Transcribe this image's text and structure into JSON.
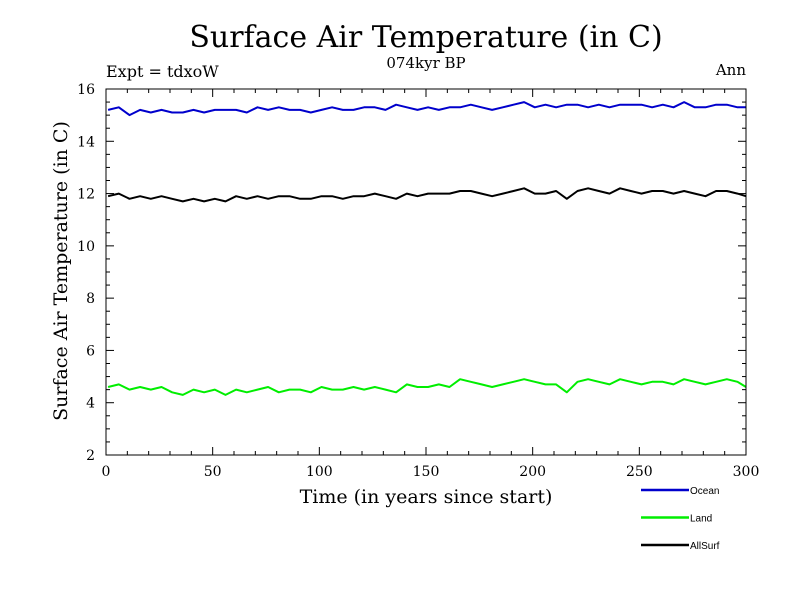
{
  "chart_data": {
    "type": "line",
    "title": "Surface Air Temperature (in C)",
    "subtitle": "074kyr BP",
    "left_annotation": "Expt = tdxoW",
    "right_annotation": "Ann",
    "xlabel": "Time (in years since start)",
    "ylabel": "Surface Air Temperature (in C)",
    "xlim": [
      0,
      300
    ],
    "ylim": [
      2,
      16
    ],
    "xticks": [
      0,
      50,
      100,
      150,
      200,
      250,
      300
    ],
    "yticks": [
      2,
      4,
      6,
      8,
      10,
      12,
      14,
      16
    ],
    "x_start": 1,
    "x_step": 5,
    "legend_position": "bottom-right",
    "series": [
      {
        "name": "Ocean",
        "color": "#0000cc",
        "values": [
          15.2,
          15.3,
          15.0,
          15.2,
          15.1,
          15.2,
          15.1,
          15.1,
          15.2,
          15.1,
          15.2,
          15.2,
          15.2,
          15.1,
          15.3,
          15.2,
          15.3,
          15.2,
          15.2,
          15.1,
          15.2,
          15.3,
          15.2,
          15.2,
          15.3,
          15.3,
          15.2,
          15.4,
          15.3,
          15.2,
          15.3,
          15.2,
          15.3,
          15.3,
          15.4,
          15.3,
          15.2,
          15.3,
          15.4,
          15.5,
          15.3,
          15.4,
          15.3,
          15.4,
          15.4,
          15.3,
          15.4,
          15.3,
          15.4,
          15.4,
          15.4,
          15.3,
          15.4,
          15.3,
          15.5,
          15.3,
          15.3,
          15.4,
          15.4,
          15.3,
          15.3
        ]
      },
      {
        "name": "Land",
        "color": "#00ee00",
        "values": [
          4.6,
          4.7,
          4.5,
          4.6,
          4.5,
          4.6,
          4.4,
          4.3,
          4.5,
          4.4,
          4.5,
          4.3,
          4.5,
          4.4,
          4.5,
          4.6,
          4.4,
          4.5,
          4.5,
          4.4,
          4.6,
          4.5,
          4.5,
          4.6,
          4.5,
          4.6,
          4.5,
          4.4,
          4.7,
          4.6,
          4.6,
          4.7,
          4.6,
          4.9,
          4.8,
          4.7,
          4.6,
          4.7,
          4.8,
          4.9,
          4.8,
          4.7,
          4.7,
          4.4,
          4.8,
          4.9,
          4.8,
          4.7,
          4.9,
          4.8,
          4.7,
          4.8,
          4.8,
          4.7,
          4.9,
          4.8,
          4.7,
          4.8,
          4.9,
          4.8,
          4.6
        ]
      },
      {
        "name": "AllSurf",
        "color": "#000000",
        "values": [
          11.9,
          12.0,
          11.8,
          11.9,
          11.8,
          11.9,
          11.8,
          11.7,
          11.8,
          11.7,
          11.8,
          11.7,
          11.9,
          11.8,
          11.9,
          11.8,
          11.9,
          11.9,
          11.8,
          11.8,
          11.9,
          11.9,
          11.8,
          11.9,
          11.9,
          12.0,
          11.9,
          11.8,
          12.0,
          11.9,
          12.0,
          12.0,
          12.0,
          12.1,
          12.1,
          12.0,
          11.9,
          12.0,
          12.1,
          12.2,
          12.0,
          12.0,
          12.1,
          11.8,
          12.1,
          12.2,
          12.1,
          12.0,
          12.2,
          12.1,
          12.0,
          12.1,
          12.1,
          12.0,
          12.1,
          12.0,
          11.9,
          12.1,
          12.1,
          12.0,
          11.9
        ]
      }
    ]
  }
}
